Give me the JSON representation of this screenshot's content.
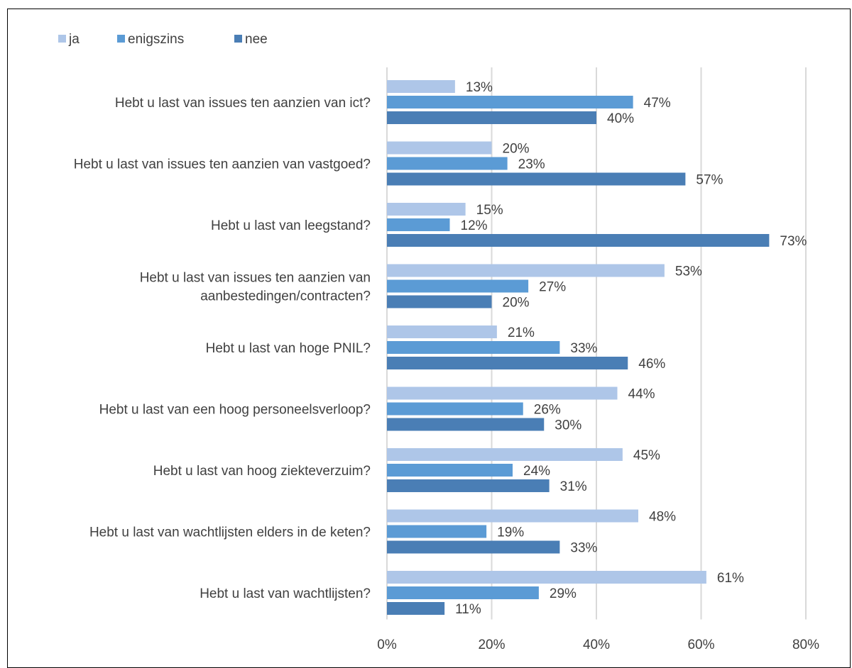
{
  "chart_data": {
    "type": "bar",
    "orientation": "horizontal",
    "title": "",
    "xlabel": "",
    "ylabel": "",
    "xlim": [
      0,
      80
    ],
    "x_ticks": [
      "0%",
      "20%",
      "40%",
      "60%",
      "80%"
    ],
    "grid": true,
    "legend_position": "top-left",
    "categories": [
      [
        "Hebt u last van issues ten aanzien van ict?"
      ],
      [
        "Hebt u last van issues ten aanzien van vastgoed?"
      ],
      [
        "Hebt u last van leegstand?"
      ],
      [
        "Hebt u last van issues ten aanzien van",
        "aanbestedingen/contracten?"
      ],
      [
        "Hebt u last van hoge PNIL?"
      ],
      [
        "Hebt u last van een hoog personeelsverloop?"
      ],
      [
        "Hebt u last van hoog ziekteverzuim?"
      ],
      [
        "Hebt u last van wachtlijsten elders in de keten?"
      ],
      [
        "Hebt u last van wachtlijsten?"
      ]
    ],
    "series": [
      {
        "name": "ja",
        "color": "#aec6e8",
        "values": [
          13,
          20,
          15,
          53,
          21,
          44,
          45,
          48,
          61
        ],
        "labels": [
          "13%",
          "20%",
          "15%",
          "53%",
          "21%",
          "44%",
          "45%",
          "48%",
          "61%"
        ]
      },
      {
        "name": "enigszins",
        "color": "#5b9bd5",
        "values": [
          47,
          23,
          12,
          27,
          33,
          26,
          24,
          19,
          29
        ],
        "labels": [
          "47%",
          "23%",
          "12%",
          "27%",
          "33%",
          "26%",
          "24%",
          "19%",
          "29%"
        ]
      },
      {
        "name": "nee",
        "color": "#4a7eb5",
        "values": [
          40,
          57,
          73,
          20,
          46,
          30,
          31,
          33,
          11
        ],
        "labels": [
          "40%",
          "57%",
          "73%",
          "20%",
          "46%",
          "30%",
          "31%",
          "33%",
          "11%"
        ]
      }
    ]
  }
}
